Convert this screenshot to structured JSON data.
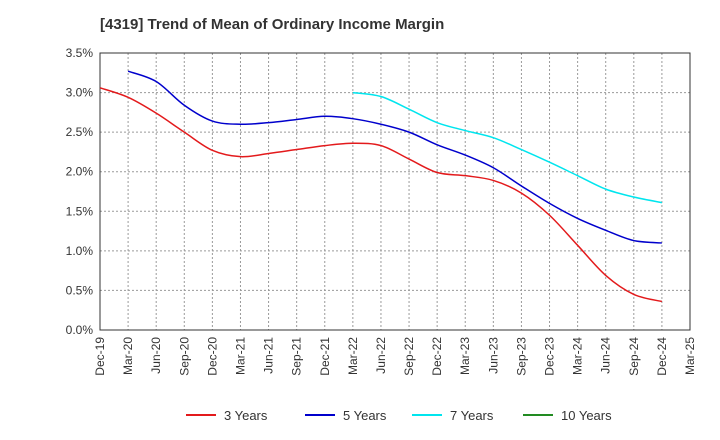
{
  "chart_data": {
    "type": "line",
    "title": "[4319]  Trend of Mean of Ordinary Income Margin",
    "xlabel": "",
    "ylabel": "",
    "x_tick_labels": [
      "Dec-19",
      "Mar-20",
      "Jun-20",
      "Sep-20",
      "Dec-20",
      "Mar-21",
      "Jun-21",
      "Sep-21",
      "Dec-21",
      "Mar-22",
      "Jun-22",
      "Sep-22",
      "Dec-22",
      "Mar-23",
      "Jun-23",
      "Sep-23",
      "Dec-23",
      "Mar-24",
      "Jun-24",
      "Sep-24",
      "Dec-24",
      "Mar-25"
    ],
    "y_tick_labels": [
      "0.0%",
      "0.5%",
      "1.0%",
      "1.5%",
      "2.0%",
      "2.5%",
      "3.0%",
      "3.5%"
    ],
    "ylim": [
      0,
      3.5
    ],
    "y_unit": "%",
    "grid": true,
    "legend_position": "bottom",
    "series": [
      {
        "name": "3 Years",
        "color": "#e31a1c",
        "x": [
          "Dec-19",
          "Mar-20",
          "Jun-20",
          "Sep-20",
          "Dec-20",
          "Mar-21",
          "Jun-21",
          "Sep-21",
          "Dec-21",
          "Mar-22",
          "Jun-22",
          "Sep-22",
          "Dec-22",
          "Mar-23",
          "Jun-23",
          "Sep-23",
          "Dec-23",
          "Mar-24",
          "Jun-24",
          "Sep-24",
          "Dec-24"
        ],
        "values": [
          3.06,
          2.94,
          2.74,
          2.5,
          2.27,
          2.19,
          2.23,
          2.28,
          2.33,
          2.36,
          2.33,
          2.16,
          1.99,
          1.95,
          1.89,
          1.73,
          1.45,
          1.07,
          0.69,
          0.45,
          0.36
        ]
      },
      {
        "name": "5 Years",
        "color": "#0000cc",
        "x": [
          "Mar-20",
          "Jun-20",
          "Sep-20",
          "Dec-20",
          "Mar-21",
          "Jun-21",
          "Sep-21",
          "Dec-21",
          "Mar-22",
          "Jun-22",
          "Sep-22",
          "Dec-22",
          "Mar-23",
          "Jun-23",
          "Sep-23",
          "Dec-23",
          "Mar-24",
          "Jun-24",
          "Sep-24",
          "Dec-24"
        ],
        "values": [
          3.27,
          3.14,
          2.84,
          2.64,
          2.6,
          2.62,
          2.66,
          2.7,
          2.67,
          2.6,
          2.5,
          2.34,
          2.21,
          2.05,
          1.82,
          1.6,
          1.41,
          1.26,
          1.13,
          1.1
        ]
      },
      {
        "name": "7 Years",
        "color": "#00e5ee",
        "x": [
          "Mar-22",
          "Jun-22",
          "Sep-22",
          "Dec-22",
          "Mar-23",
          "Jun-23",
          "Sep-23",
          "Dec-23",
          "Mar-24",
          "Jun-24",
          "Sep-24",
          "Dec-24"
        ],
        "values": [
          3.0,
          2.95,
          2.79,
          2.62,
          2.52,
          2.43,
          2.28,
          2.12,
          1.95,
          1.78,
          1.68,
          1.61
        ]
      },
      {
        "name": "10 Years",
        "color": "#228b22",
        "x": [],
        "values": []
      }
    ]
  }
}
